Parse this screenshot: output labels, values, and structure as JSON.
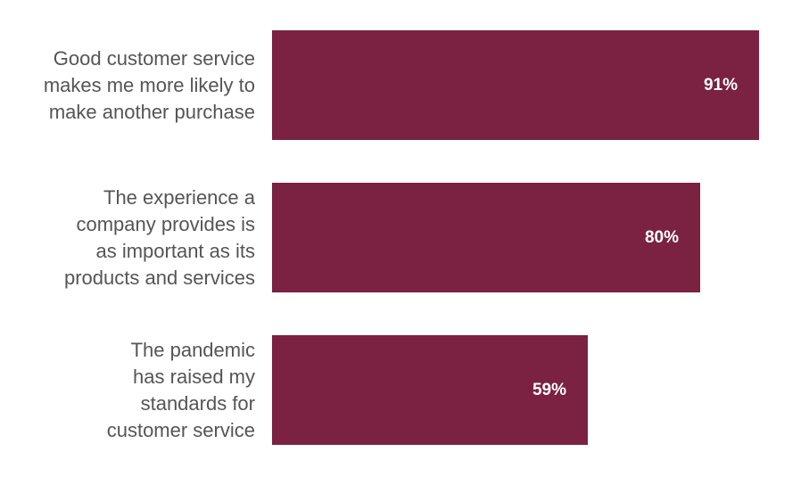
{
  "chart_data": {
    "type": "bar",
    "orientation": "horizontal",
    "categories": [
      "Good customer service makes me more likely to make another purchase",
      "The experience a company provides is as important as its products and services",
      "The pandemic has raised my standards for customer service"
    ],
    "category_lines": [
      [
        "Good customer service",
        "makes me more likely to",
        "make another purchase"
      ],
      [
        "The experience a",
        "company provides is",
        "as important as its",
        "products and services"
      ],
      [
        "The pandemic",
        "has raised my",
        "standards for",
        "customer service"
      ]
    ],
    "values": [
      91,
      80,
      59
    ],
    "data_labels": [
      "91%",
      "80%",
      "59%"
    ],
    "xlim": [
      0,
      100
    ],
    "color": "#7b2141",
    "label_color": "#555555",
    "grid": false,
    "legend": "none"
  }
}
